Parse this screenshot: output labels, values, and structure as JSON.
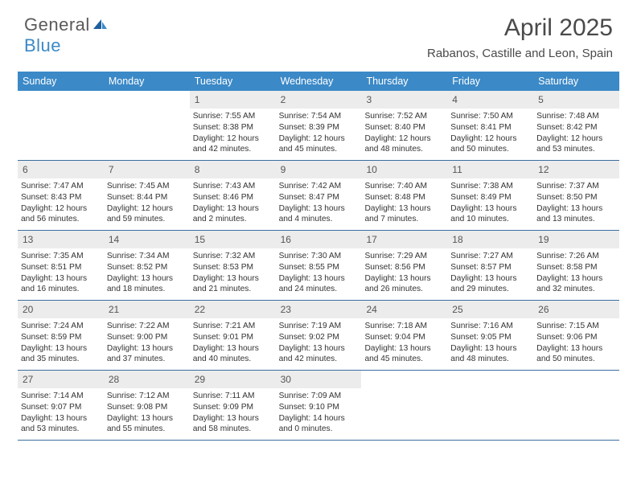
{
  "brand": {
    "name_part1": "General",
    "name_part2": "Blue"
  },
  "title": "April 2025",
  "location": "Rabanos, Castille and Leon, Spain",
  "colors": {
    "header_bg": "#3b89c7",
    "border": "#3b6fa0",
    "daynum_bg": "#ececec",
    "text": "#333333"
  },
  "dow": [
    "Sunday",
    "Monday",
    "Tuesday",
    "Wednesday",
    "Thursday",
    "Friday",
    "Saturday"
  ],
  "weeks": [
    [
      {
        "n": "",
        "sr": "",
        "ss": "",
        "dl": ""
      },
      {
        "n": "",
        "sr": "",
        "ss": "",
        "dl": ""
      },
      {
        "n": "1",
        "sr": "7:55 AM",
        "ss": "8:38 PM",
        "dl": "12 hours and 42 minutes."
      },
      {
        "n": "2",
        "sr": "7:54 AM",
        "ss": "8:39 PM",
        "dl": "12 hours and 45 minutes."
      },
      {
        "n": "3",
        "sr": "7:52 AM",
        "ss": "8:40 PM",
        "dl": "12 hours and 48 minutes."
      },
      {
        "n": "4",
        "sr": "7:50 AM",
        "ss": "8:41 PM",
        "dl": "12 hours and 50 minutes."
      },
      {
        "n": "5",
        "sr": "7:48 AM",
        "ss": "8:42 PM",
        "dl": "12 hours and 53 minutes."
      }
    ],
    [
      {
        "n": "6",
        "sr": "7:47 AM",
        "ss": "8:43 PM",
        "dl": "12 hours and 56 minutes."
      },
      {
        "n": "7",
        "sr": "7:45 AM",
        "ss": "8:44 PM",
        "dl": "12 hours and 59 minutes."
      },
      {
        "n": "8",
        "sr": "7:43 AM",
        "ss": "8:46 PM",
        "dl": "13 hours and 2 minutes."
      },
      {
        "n": "9",
        "sr": "7:42 AM",
        "ss": "8:47 PM",
        "dl": "13 hours and 4 minutes."
      },
      {
        "n": "10",
        "sr": "7:40 AM",
        "ss": "8:48 PM",
        "dl": "13 hours and 7 minutes."
      },
      {
        "n": "11",
        "sr": "7:38 AM",
        "ss": "8:49 PM",
        "dl": "13 hours and 10 minutes."
      },
      {
        "n": "12",
        "sr": "7:37 AM",
        "ss": "8:50 PM",
        "dl": "13 hours and 13 minutes."
      }
    ],
    [
      {
        "n": "13",
        "sr": "7:35 AM",
        "ss": "8:51 PM",
        "dl": "13 hours and 16 minutes."
      },
      {
        "n": "14",
        "sr": "7:34 AM",
        "ss": "8:52 PM",
        "dl": "13 hours and 18 minutes."
      },
      {
        "n": "15",
        "sr": "7:32 AM",
        "ss": "8:53 PM",
        "dl": "13 hours and 21 minutes."
      },
      {
        "n": "16",
        "sr": "7:30 AM",
        "ss": "8:55 PM",
        "dl": "13 hours and 24 minutes."
      },
      {
        "n": "17",
        "sr": "7:29 AM",
        "ss": "8:56 PM",
        "dl": "13 hours and 26 minutes."
      },
      {
        "n": "18",
        "sr": "7:27 AM",
        "ss": "8:57 PM",
        "dl": "13 hours and 29 minutes."
      },
      {
        "n": "19",
        "sr": "7:26 AM",
        "ss": "8:58 PM",
        "dl": "13 hours and 32 minutes."
      }
    ],
    [
      {
        "n": "20",
        "sr": "7:24 AM",
        "ss": "8:59 PM",
        "dl": "13 hours and 35 minutes."
      },
      {
        "n": "21",
        "sr": "7:22 AM",
        "ss": "9:00 PM",
        "dl": "13 hours and 37 minutes."
      },
      {
        "n": "22",
        "sr": "7:21 AM",
        "ss": "9:01 PM",
        "dl": "13 hours and 40 minutes."
      },
      {
        "n": "23",
        "sr": "7:19 AM",
        "ss": "9:02 PM",
        "dl": "13 hours and 42 minutes."
      },
      {
        "n": "24",
        "sr": "7:18 AM",
        "ss": "9:04 PM",
        "dl": "13 hours and 45 minutes."
      },
      {
        "n": "25",
        "sr": "7:16 AM",
        "ss": "9:05 PM",
        "dl": "13 hours and 48 minutes."
      },
      {
        "n": "26",
        "sr": "7:15 AM",
        "ss": "9:06 PM",
        "dl": "13 hours and 50 minutes."
      }
    ],
    [
      {
        "n": "27",
        "sr": "7:14 AM",
        "ss": "9:07 PM",
        "dl": "13 hours and 53 minutes."
      },
      {
        "n": "28",
        "sr": "7:12 AM",
        "ss": "9:08 PM",
        "dl": "13 hours and 55 minutes."
      },
      {
        "n": "29",
        "sr": "7:11 AM",
        "ss": "9:09 PM",
        "dl": "13 hours and 58 minutes."
      },
      {
        "n": "30",
        "sr": "7:09 AM",
        "ss": "9:10 PM",
        "dl": "14 hours and 0 minutes."
      },
      {
        "n": "",
        "sr": "",
        "ss": "",
        "dl": ""
      },
      {
        "n": "",
        "sr": "",
        "ss": "",
        "dl": ""
      },
      {
        "n": "",
        "sr": "",
        "ss": "",
        "dl": ""
      }
    ]
  ],
  "labels": {
    "sunrise": "Sunrise:",
    "sunset": "Sunset:",
    "daylight": "Daylight:"
  }
}
